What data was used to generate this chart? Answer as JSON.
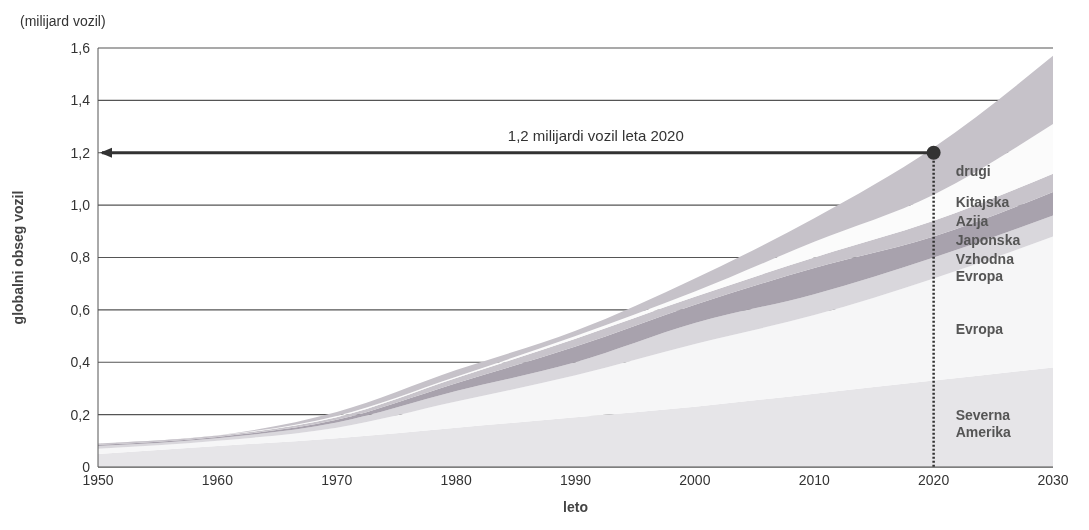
{
  "chart_data": {
    "type": "area",
    "stacked": true,
    "xlabel": "leto",
    "ylabel": "globalni obseg vozil",
    "annotations": [
      "(milijard vozil)"
    ],
    "ref_lines": [
      {
        "axis": "y",
        "value": 1.2,
        "label": "1,2 milijardi vozil leta 2020",
        "color": "#333333",
        "line_style": "solid"
      },
      {
        "axis": "x",
        "value": 2020,
        "color": "#333333",
        "line_style": "dotted"
      }
    ],
    "x": [
      1950,
      1960,
      1970,
      1980,
      1990,
      2000,
      2010,
      2020,
      2030
    ],
    "series": [
      {
        "name": "Severna Amerika",
        "color": "#e6e5e8",
        "values": [
          0.05,
          0.08,
          0.11,
          0.15,
          0.19,
          0.23,
          0.28,
          0.33,
          0.38
        ]
      },
      {
        "name": "Evropa",
        "color": "#f6f6f7",
        "values": [
          0.02,
          0.02,
          0.04,
          0.1,
          0.16,
          0.24,
          0.3,
          0.39,
          0.5
        ]
      },
      {
        "name": "Vzhodna Evropa",
        "color": "#d9d7dc",
        "values": [
          0.01,
          0.01,
          0.02,
          0.04,
          0.05,
          0.08,
          0.08,
          0.08,
          0.08
        ]
      },
      {
        "name": "Japonska",
        "color": "#a8a2ad",
        "values": [
          0.005,
          0.005,
          0.01,
          0.03,
          0.06,
          0.07,
          0.1,
          0.08,
          0.09
        ]
      },
      {
        "name": "Azija",
        "color": "#c8c4cb",
        "values": [
          0.005,
          0.005,
          0.01,
          0.02,
          0.03,
          0.03,
          0.04,
          0.06,
          0.07
        ]
      },
      {
        "name": "Kitajska",
        "color": "#fbfbfb",
        "values": [
          0,
          0,
          0.005,
          0.005,
          0.01,
          0.02,
          0.06,
          0.1,
          0.19
        ]
      },
      {
        "name": "drugi",
        "color": "#c6c2c9",
        "values": [
          0,
          0,
          0.015,
          0.025,
          0.02,
          0.05,
          0.09,
          0.18,
          0.26
        ]
      }
    ],
    "xlim": [
      1950,
      2030
    ],
    "xticks": [
      1950,
      1960,
      1970,
      1980,
      1990,
      2000,
      2010,
      2020,
      2030
    ],
    "ylim": [
      0,
      1.6
    ],
    "yticks": [
      0,
      {
        "value": 0.2,
        "label": "0,2"
      },
      {
        "value": 0.4,
        "label": "0,4"
      },
      {
        "value": 0.6,
        "label": "0,6"
      },
      {
        "value": 0.8,
        "label": "0,8"
      },
      {
        "value": 1,
        "label": "1,0"
      },
      {
        "value": 1.2,
        "label": "1,2"
      },
      {
        "value": 1.4,
        "label": "1,4"
      },
      {
        "value": 1.6,
        "label": "1,6"
      }
    ],
    "grid": "y"
  }
}
